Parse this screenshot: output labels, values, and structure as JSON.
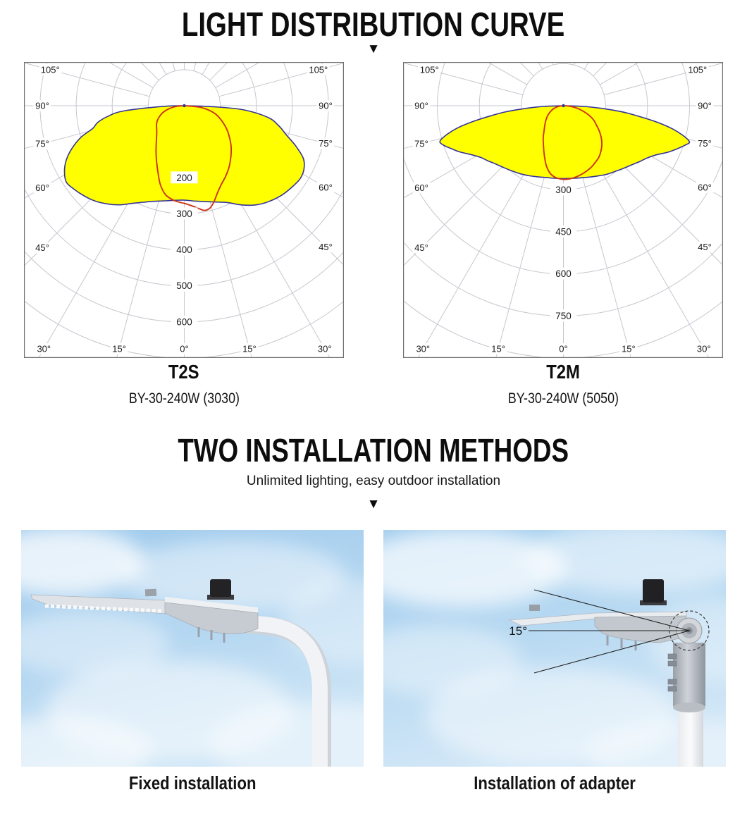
{
  "colors": {
    "lobe_fill_yellow": "#ffff00",
    "lobe_outline_navy": "#34349b",
    "curve_red": "#cd3318",
    "grid": "#c6c7cf",
    "chart_border": "#6e6e6e",
    "heading_black": "#0d0d0d",
    "sky_blue": "#a9d0ee"
  },
  "section_light_distribution": {
    "title": "LIGHT DISTRIBUTION CURVE",
    "arrow_icon": "▼"
  },
  "charts": [
    {
      "name": "T2S",
      "model": "BY-30-240W (3030)",
      "chart_data": {
        "type": "polar-photometric",
        "angle_ticks_deg": [
          0,
          15,
          30,
          45,
          60,
          75,
          90,
          105
        ],
        "side_angle_labels": [
          "105°",
          "90°",
          "75°",
          "60°",
          "45°"
        ],
        "bottom_angle_labels": [
          "30°",
          "15°",
          "0°",
          "15°",
          "30°"
        ],
        "ring_step": 100,
        "ring_max": 700,
        "ring_labels": [
          200,
          300,
          400,
          500,
          600
        ],
        "series": [
          {
            "name": "wide-lobe-yellow",
            "color": "#34349b",
            "fill": "#ffff00",
            "points": [
              [
                -90,
                0
              ],
              [
                -88,
                60
              ],
              [
                -85,
                170
              ],
              [
                -82,
                215
              ],
              [
                -79,
                245
              ],
              [
                -76,
                262
              ],
              [
                -73,
                300
              ],
              [
                -69,
                335
              ],
              [
                -65,
                362
              ],
              [
                -61,
                380
              ],
              [
                -57,
                390
              ],
              [
                -53,
                384
              ],
              [
                -48,
                374
              ],
              [
                -43,
                362
              ],
              [
                -38,
                346
              ],
              [
                -33,
                328
              ],
              [
                -28,
                307
              ],
              [
                -23,
                291
              ],
              [
                -18,
                279
              ],
              [
                -12,
                270
              ],
              [
                -6,
                264
              ],
              [
                0,
                262
              ],
              [
                6,
                266
              ],
              [
                12,
                272
              ],
              [
                18,
                281
              ],
              [
                24,
                294
              ],
              [
                30,
                318
              ],
              [
                36,
                340
              ],
              [
                42,
                356
              ],
              [
                48,
                368
              ],
              [
                54,
                376
              ],
              [
                58,
                380
              ],
              [
                62,
                376
              ],
              [
                66,
                362
              ],
              [
                70,
                330
              ],
              [
                74,
                295
              ],
              [
                78,
                268
              ],
              [
                82,
                235
              ],
              [
                86,
                165
              ],
              [
                88,
                80
              ],
              [
                90,
                0
              ]
            ]
          },
          {
            "name": "narrow-lobe-red",
            "color": "#cd3318",
            "fill": null,
            "points": [
              [
                -90,
                0
              ],
              [
                -85,
                22
              ],
              [
                -80,
                40
              ],
              [
                -74,
                58
              ],
              [
                -68,
                72
              ],
              [
                -62,
                84
              ],
              [
                -56,
                93
              ],
              [
                -50,
                100
              ],
              [
                -44,
                110
              ],
              [
                -38,
                126
              ],
              [
                -32,
                148
              ],
              [
                -27,
                170
              ],
              [
                -22,
                196
              ],
              [
                -17,
                228
              ],
              [
                -12,
                252
              ],
              [
                -7,
                263
              ],
              [
                -3,
                268
              ],
              [
                0,
                271
              ],
              [
                4,
                278
              ],
              [
                8,
                288
              ],
              [
                11,
                296
              ],
              [
                14,
                293
              ],
              [
                17,
                280
              ],
              [
                21,
                258
              ],
              [
                25,
                242
              ],
              [
                30,
                228
              ],
              [
                35,
                214
              ],
              [
                40,
                199
              ],
              [
                45,
                184
              ],
              [
                50,
                169
              ],
              [
                55,
                153
              ],
              [
                60,
                138
              ],
              [
                65,
                122
              ],
              [
                70,
                106
              ],
              [
                75,
                90
              ],
              [
                80,
                68
              ],
              [
                85,
                40
              ],
              [
                90,
                0
              ]
            ]
          }
        ]
      }
    },
    {
      "name": "T2M",
      "model": "BY-30-240W (5050)",
      "chart_data": {
        "type": "polar-photometric",
        "angle_ticks_deg": [
          0,
          15,
          30,
          45,
          60,
          75,
          90,
          105
        ],
        "side_angle_labels": [
          "105°",
          "90°",
          "75°",
          "60°",
          "45°"
        ],
        "bottom_angle_labels": [
          "30°",
          "15°",
          "0°",
          "15°",
          "30°"
        ],
        "ring_step": 150,
        "ring_max": 900,
        "ring_labels": [
          300,
          450,
          600,
          750
        ],
        "series": [
          {
            "name": "wide-lobe-yellow",
            "color": "#34349b",
            "fill": "#ffff00",
            "points": [
              [
                -90,
                0
              ],
              [
                -88,
                70
              ],
              [
                -86,
                130
              ],
              [
                -84,
                205
              ],
              [
                -82,
                265
              ],
              [
                -80,
                330
              ],
              [
                -78,
                390
              ],
              [
                -76,
                430
              ],
              [
                -74,
                458
              ],
              [
                -72,
                452
              ],
              [
                -69,
                428
              ],
              [
                -66,
                405
              ],
              [
                -62,
                372
              ],
              [
                -58,
                348
              ],
              [
                -54,
                334
              ],
              [
                -49,
                318
              ],
              [
                -44,
                307
              ],
              [
                -38,
                296
              ],
              [
                -32,
                287
              ],
              [
                -26,
                278
              ],
              [
                -20,
                270
              ],
              [
                -14,
                264
              ],
              [
                -7,
                261
              ],
              [
                0,
                260
              ],
              [
                7,
                261
              ],
              [
                14,
                265
              ],
              [
                20,
                271
              ],
              [
                26,
                279
              ],
              [
                32,
                289
              ],
              [
                38,
                298
              ],
              [
                44,
                310
              ],
              [
                49,
                322
              ],
              [
                54,
                338
              ],
              [
                58,
                352
              ],
              [
                62,
                374
              ],
              [
                66,
                408
              ],
              [
                69,
                432
              ],
              [
                72,
                456
              ],
              [
                74,
                468
              ],
              [
                76,
                440
              ],
              [
                78,
                398
              ],
              [
                80,
                340
              ],
              [
                82,
                272
              ],
              [
                84,
                210
              ],
              [
                86,
                135
              ],
              [
                88,
                72
              ],
              [
                90,
                0
              ]
            ]
          },
          {
            "name": "narrow-lobe-red",
            "color": "#cd3318",
            "fill": null,
            "points": [
              [
                -90,
                0
              ],
              [
                -82,
                18
              ],
              [
                -74,
                35
              ],
              [
                -66,
                50
              ],
              [
                -58,
                66
              ],
              [
                -50,
                82
              ],
              [
                -44,
                95
              ],
              [
                -38,
                112
              ],
              [
                -32,
                136
              ],
              [
                -26,
                162
              ],
              [
                -21,
                190
              ],
              [
                -16,
                222
              ],
              [
                -11,
                246
              ],
              [
                -6,
                258
              ],
              [
                0,
                263
              ],
              [
                5,
                262
              ],
              [
                10,
                258
              ],
              [
                15,
                253
              ],
              [
                20,
                247
              ],
              [
                25,
                240
              ],
              [
                30,
                231
              ],
              [
                35,
                222
              ],
              [
                40,
                209
              ],
              [
                45,
                194
              ],
              [
                50,
                176
              ],
              [
                55,
                156
              ],
              [
                60,
                135
              ],
              [
                65,
                118
              ],
              [
                70,
                95
              ],
              [
                75,
                70
              ],
              [
                80,
                48
              ],
              [
                85,
                25
              ],
              [
                90,
                0
              ]
            ]
          }
        ]
      }
    }
  ],
  "section_installation": {
    "title": "TWO INSTALLATION METHODS",
    "subtitle": "Unlimited lighting, easy outdoor installation",
    "arrow_icon": "▼"
  },
  "installations": [
    {
      "caption": "Fixed installation"
    },
    {
      "caption": "Installation of adapter",
      "angle_label": "15°"
    }
  ]
}
